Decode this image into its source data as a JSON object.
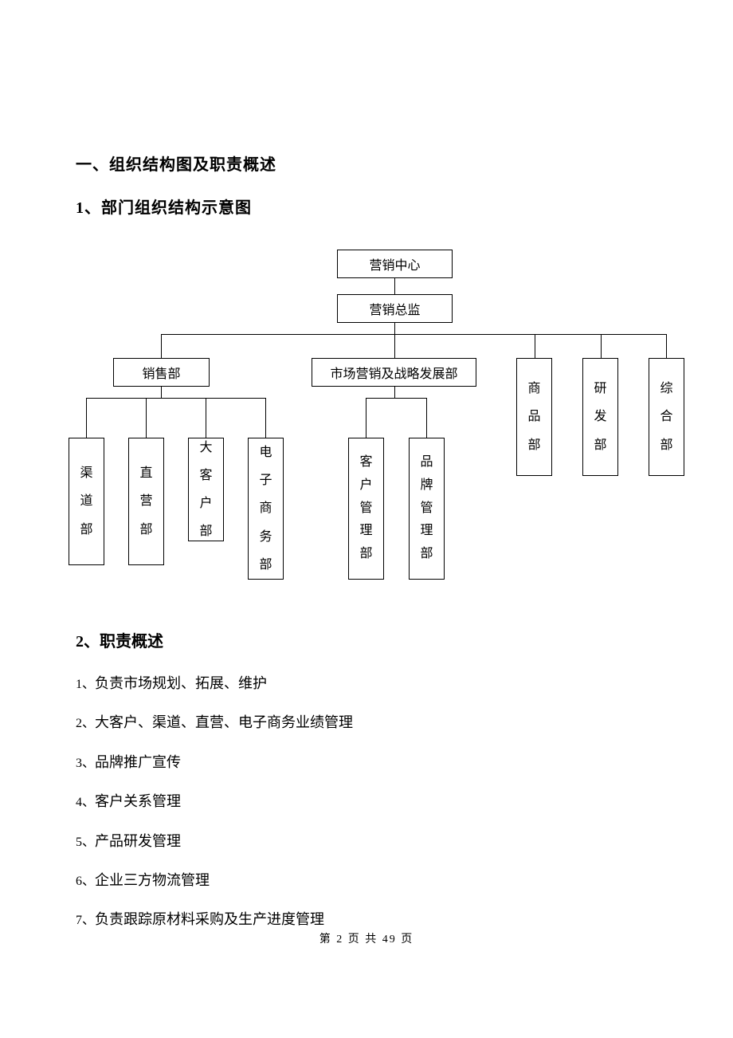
{
  "headings": {
    "h1": "一、组织结构图及职责概述",
    "h2a": "1、部门组织结构示意图",
    "h2b": "2、职责概述"
  },
  "org": {
    "top1": "营销中心",
    "top2": "营销总监",
    "sales": "销售部",
    "marketing": "市场营销及战略发展部",
    "product": "商品部",
    "rd": "研发部",
    "general": "综合部",
    "channel": "渠道部",
    "direct": "直营部",
    "bigcust": "大客户部",
    "ecom": "电子商务部",
    "custmgmt": "客户管理部",
    "brand": "品牌管理部"
  },
  "responsibilities": [
    "负责市场规划、拓展、维护",
    "大客户、渠道、直营、电子商务业绩管理",
    "品牌推广宣传",
    "客户关系管理",
    "产品研发管理",
    "企业三方物流管理",
    "负责跟踪原材料采购及生产进度管理"
  ],
  "footer": {
    "text": "第 2 页 共 49 页"
  },
  "style": {
    "page_bg": "#ffffff",
    "text_color": "#000000",
    "border_color": "#000000",
    "heading_fontsize": 20,
    "body_fontsize": 18,
    "footer_fontsize": 14
  }
}
